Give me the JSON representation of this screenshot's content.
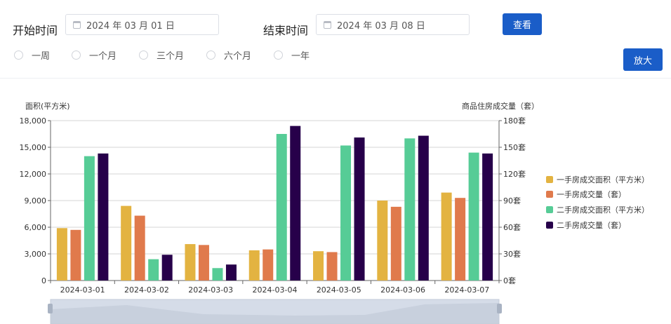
{
  "filters": {
    "start_label": "开始时间",
    "start_value": "2024 年 03 月 01 日",
    "end_label": "结束时间",
    "end_value": "2024 年 03 月 08 日",
    "query_button": "查看",
    "zoom_button": "放大",
    "ranges": [
      "一周",
      "一个月",
      "三个月",
      "六个月",
      "一年"
    ]
  },
  "colors": {
    "accent": "#1a5dc8",
    "series": [
      "#e3b341",
      "#e07a4c",
      "#56cc96",
      "#27004a"
    ]
  },
  "chart_data": {
    "type": "bar",
    "y_left_label": "面积(平方米)",
    "y_right_label": "商品住房成交量（套）",
    "categories": [
      "2024-03-01",
      "2024-03-02",
      "2024-03-03",
      "2024-03-04",
      "2024-03-05",
      "2024-03-06",
      "2024-03-07"
    ],
    "y_left_ticks": [
      "0",
      "3,000",
      "6,000",
      "9,000",
      "12,000",
      "15,000",
      "18,000"
    ],
    "y_right_ticks": [
      "0套",
      "30套",
      "60套",
      "90套",
      "120套",
      "150套",
      "180套"
    ],
    "ylim_left": [
      0,
      18000
    ],
    "ylim_right": [
      0,
      180
    ],
    "grid": true,
    "legend_position": "right",
    "series": [
      {
        "name": "一手房成交面积（平方米）",
        "axis": "left",
        "values": [
          5900,
          8400,
          4100,
          3400,
          3300,
          9000,
          9900
        ]
      },
      {
        "name": "一手房成交量（套）",
        "axis": "right",
        "values": [
          57,
          73,
          40,
          35,
          32,
          83,
          93
        ]
      },
      {
        "name": "二手房成交面积（平方米）",
        "axis": "left",
        "values": [
          14000,
          2400,
          1400,
          16500,
          15200,
          16000,
          14400
        ]
      },
      {
        "name": "二手房成交量（套）",
        "axis": "right",
        "values": [
          143,
          29,
          18,
          174,
          161,
          163,
          143
        ]
      }
    ]
  }
}
